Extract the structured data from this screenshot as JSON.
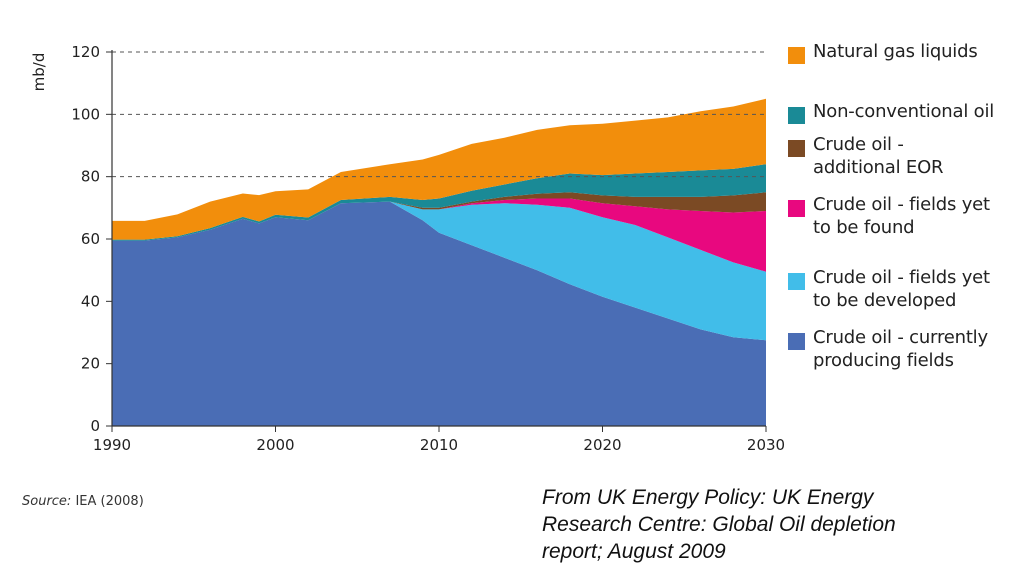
{
  "chart_data": {
    "type": "area",
    "stacked": true,
    "ylabel": "mb/d",
    "xlabel": "",
    "xlim": [
      1990,
      2030
    ],
    "ylim": [
      0,
      120
    ],
    "x_ticks": [
      "1990",
      "2000",
      "2010",
      "2020",
      "2030"
    ],
    "y_ticks": [
      "0",
      "20",
      "40",
      "60",
      "80",
      "100",
      "120"
    ],
    "grid": "dashed horizontal at 80, 100, 120",
    "legend_position": "right",
    "x": [
      1990,
      1992,
      1994,
      1996,
      1998,
      1999,
      2000,
      2002,
      2004,
      2007,
      2009,
      2010,
      2012,
      2014,
      2016,
      2018,
      2020,
      2022,
      2024,
      2026,
      2028,
      2030
    ],
    "series": [
      {
        "name": "Crude oil - currently producing fields",
        "color": "#4a6db5",
        "values": [
          59.5,
          59.5,
          60.5,
          63,
          66.5,
          65,
          67,
          66,
          71.5,
          72,
          66,
          62,
          58,
          54,
          50,
          45.5,
          41.5,
          38,
          34.5,
          31,
          28.5,
          27.5
        ]
      },
      {
        "name": "Crude oil - fields yet to be developed",
        "color": "#41bde9",
        "values": [
          0,
          0,
          0,
          0,
          0,
          0,
          0,
          0,
          0,
          0,
          3.5,
          7.5,
          13,
          17.5,
          21,
          24.5,
          25.5,
          26.5,
          26,
          25.5,
          24,
          22
        ]
      },
      {
        "name": "Crude oil - fields yet to be found",
        "color": "#e8087f",
        "values": [
          0,
          0,
          0,
          0,
          0,
          0,
          0,
          0,
          0,
          0,
          0,
          0,
          0.5,
          1,
          2,
          3,
          4.5,
          6,
          9,
          12.5,
          16,
          19.5
        ]
      },
      {
        "name": "Crude oil - additional EOR",
        "color": "#7b4a24",
        "values": [
          0,
          0,
          0,
          0,
          0,
          0,
          0,
          0,
          0,
          0,
          0.5,
          0.5,
          0.5,
          1,
          1.5,
          2,
          2.5,
          3,
          4,
          4.5,
          5.5,
          6
        ]
      },
      {
        "name": "Non-conventional oil",
        "color": "#1a8a96",
        "values": [
          0.3,
          0.3,
          0.4,
          0.5,
          0.6,
          0.6,
          0.8,
          0.9,
          1,
          1.5,
          2.5,
          3,
          3.5,
          4,
          5,
          6,
          6.5,
          7.5,
          8,
          8.5,
          8.5,
          9
        ]
      },
      {
        "name": "Natural gas liquids",
        "color": "#f28e0c",
        "values": [
          6,
          6,
          7,
          8.5,
          7.5,
          8.5,
          7.5,
          9,
          9,
          10.5,
          13,
          14,
          15,
          15,
          15.5,
          15.5,
          16.5,
          17,
          17.5,
          19,
          20,
          21
        ]
      }
    ],
    "legend_order": [
      "Natural gas liquids",
      "Non-conventional oil",
      "Crude oil - additional EOR",
      "Crude oil - fields yet to be found",
      "Crude oil - fields yet to be developed",
      "Crude oil - currently producing fields"
    ]
  },
  "legend": [
    {
      "label": "Natural gas liquids",
      "color": "#f28e0c"
    },
    {
      "label": "Non-conventional oil",
      "color": "#1a8a96"
    },
    {
      "label": "Crude oil -\nadditional EOR",
      "color": "#7b4a24"
    },
    {
      "label": "Crude oil - fields yet\nto be found",
      "color": "#e8087f"
    },
    {
      "label": "Crude oil - fields yet\nto be developed",
      "color": "#41bde9"
    },
    {
      "label": "Crude oil - currently\nproducing fields",
      "color": "#4a6db5"
    }
  ],
  "source": {
    "prefix": "Source:",
    "text": " IEA (2008)"
  },
  "caption": "From UK Energy Policy:  UK Energy\nResearch Centre:  Global Oil depletion\nreport; August 2009"
}
